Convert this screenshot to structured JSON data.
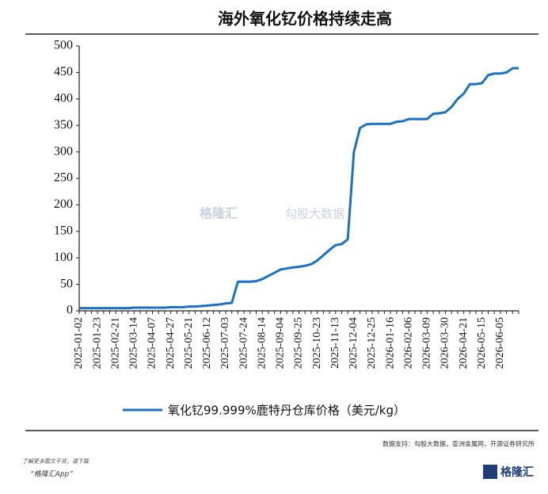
{
  "chart_data": {
    "type": "line",
    "title": "海外氧化钇价格持续走高",
    "categories": [
      "2025-01-02",
      null,
      null,
      "2025-01-23",
      null,
      null,
      "2025-02-21",
      null,
      null,
      "2025-03-14",
      null,
      null,
      "2025-04-07",
      null,
      null,
      "2025-04-27",
      null,
      null,
      "2025-05-21",
      null,
      null,
      "2025-06-12",
      null,
      null,
      "2025-07-03",
      null,
      null,
      "2025-07-24",
      null,
      null,
      "2025-08-14",
      null,
      null,
      "2025-09-04",
      null,
      null,
      "2025-09-25",
      null,
      null,
      "2025-10-23",
      null,
      null,
      "2025-11-13",
      null,
      null,
      "2025-12-04",
      null,
      null,
      "2025-12-25",
      null,
      null,
      "2026-01-16",
      null,
      null,
      "2026-02-06",
      null,
      null,
      "2026-03-09",
      null,
      null,
      "2026-03-30",
      null,
      null,
      "2026-04-21",
      null,
      null,
      "2026-05-15",
      null,
      null,
      "2026-06-05",
      null,
      null,
      null
    ],
    "series": [
      {
        "name": "氧化钇99.999%鹿特丹仓库价格（美元/kg）",
        "color": "#1a72c6",
        "values": [
          5,
          5,
          5,
          5,
          5,
          5,
          5,
          5,
          5,
          6,
          6,
          6,
          6,
          6,
          6,
          7,
          7,
          7,
          8,
          8,
          9,
          10,
          11,
          12,
          14,
          15,
          55,
          55,
          55,
          56,
          60,
          66,
          72,
          78,
          80,
          82,
          83,
          85,
          88,
          95,
          105,
          115,
          124,
          126,
          135,
          300,
          345,
          352,
          353,
          353,
          353,
          353,
          357,
          358,
          362,
          362,
          362,
          362,
          372,
          373,
          375,
          385,
          400,
          410,
          428,
          428,
          430,
          445,
          448,
          448,
          450,
          458,
          458
        ]
      }
    ],
    "ylim": [
      0,
      500
    ],
    "yticks": [
      0,
      50,
      100,
      150,
      200,
      250,
      300,
      350,
      400,
      450,
      500
    ],
    "watermark": [
      "格隆汇",
      "勾股大数据"
    ],
    "source": "数据支持：勾股大数据，亚洲金属网，开源证券研究所",
    "footer": [
      "了解更多图文干货，请下载",
      "“格隆汇App”"
    ],
    "logo": "格隆汇"
  }
}
